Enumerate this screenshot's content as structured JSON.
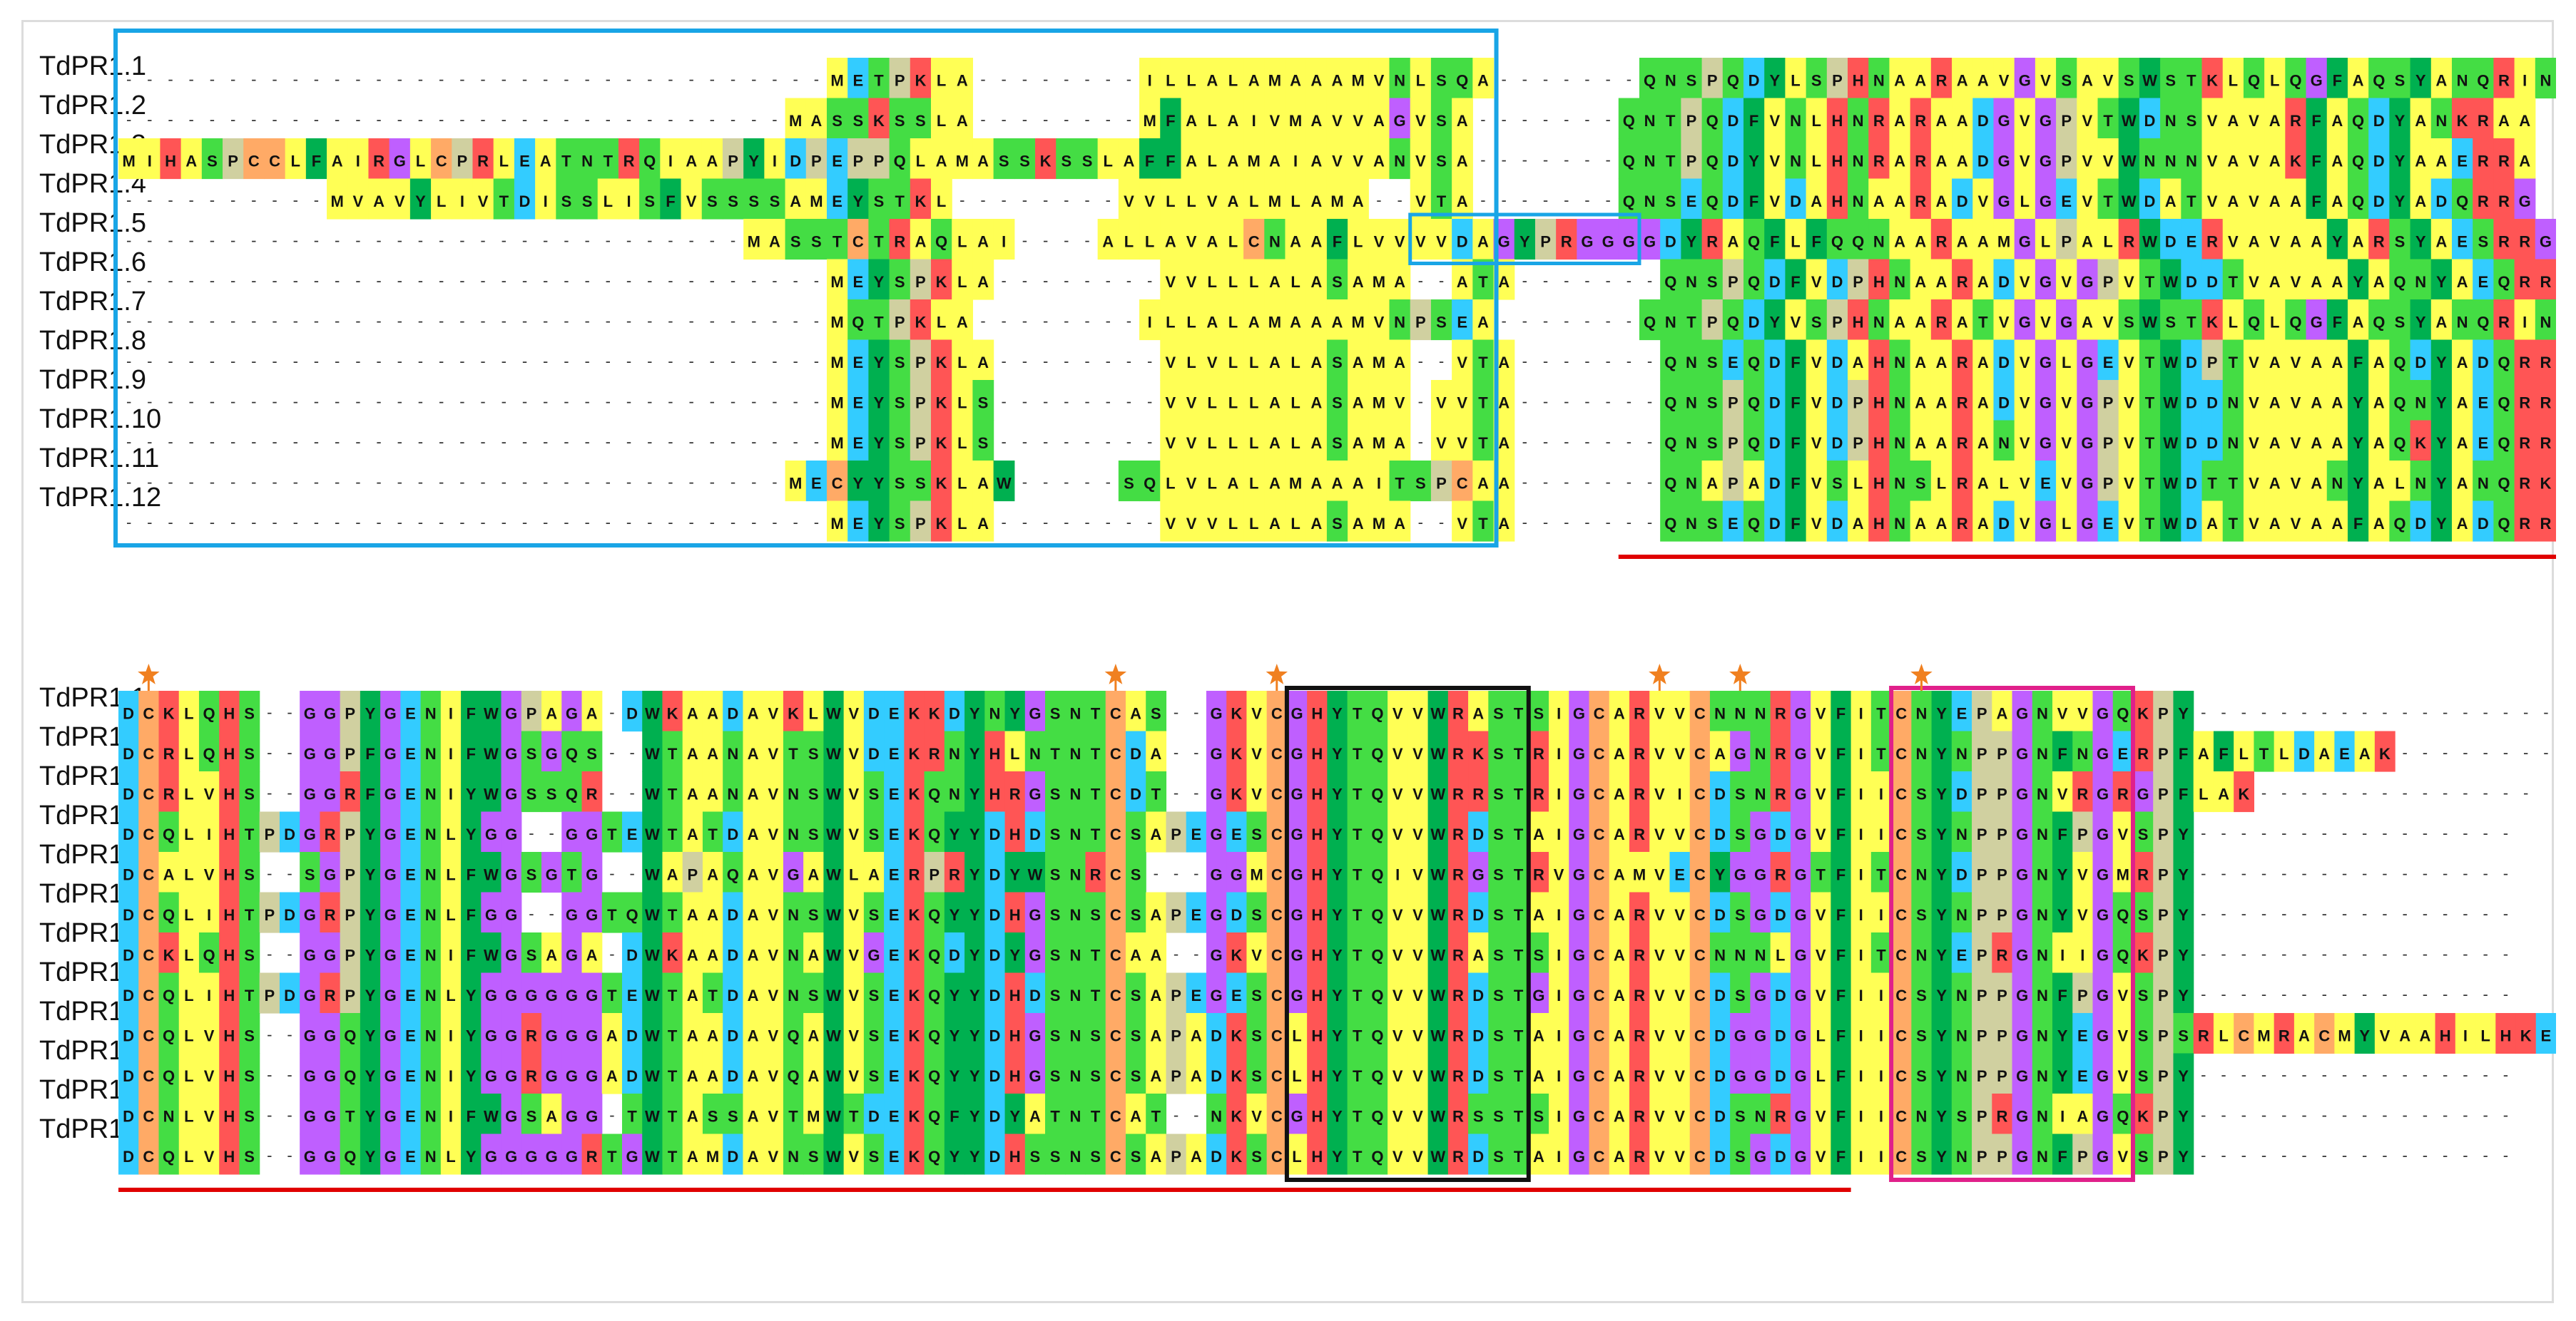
{
  "colors": {
    "A": "#ffff55",
    "I": "#ffff55",
    "L": "#ffff55",
    "M": "#ffff55",
    "V": "#ffff55",
    "F": "#00b050",
    "W": "#00b050",
    "Y": "#00b050",
    "G": "#bf5fff",
    "P": "#d0d0a0",
    "D": "#33ccff",
    "E": "#33ccff",
    "K": "#ff5555",
    "R": "#ff5555",
    "H": "#ff5555",
    "N": "#44dd44",
    "Q": "#44dd44",
    "S": "#44dd44",
    "T": "#44dd44",
    "C": "#ffaa66",
    "gap": "#ffffff",
    "text": "#111111",
    "blue_box": "#19a5e6",
    "black_box": "#111111",
    "magenta_box": "#e0208a",
    "underline": "#e00000",
    "star": "#f08020"
  },
  "block1": {
    "labels": [
      "TdPR1.1",
      "TdPR1.2",
      "TdPR1.3",
      "TdPR1.4",
      "TdPR1.5",
      "TdPR1.6",
      "TdPR1.7",
      "TdPR1.8",
      "TdPR1.9",
      "TdPR1.10",
      "TdPR1.11",
      "TdPR1.12"
    ],
    "rows": [
      "----------------------------------METPKLA--------ILLALAMAAAMVNLSQA-------QNSPQDYLSPHNAARAAVGVSAVSWSTKLQLQGFAQSYANQRIN",
      "--------------------------------MASSKSSLA--------MFALAIVMAVVAGVSA-------QNTPQDFVNLHNRARAADGVGPVTWDNSVAVARFAQDYANKRAA",
      "MIHASPCCLFAIRGLCPRLEATNTRQIAAPYIDPEPPQLAMASSKSSLAFFALAMAIAVVANVSA-------QNTPQDYVNLHNRARAADGVGPVVWNNNVAVAKFAQDYAAERRA",
      "----------MVAVYLIVTDISSLISFVSSSSAMEYSTKL--------VVLLVALMLAMA--VTA-------QNSEQDFVDAHNAARADVGLGEVTWDATVAVAAFAQDYADQRRG",
      "------------------------------MASSTCTRAQLAI----ALLAVALCNAAFLVVVVDAGYPRGGGGDYRAQFLFQQNAARAAMGLPALRWDERVAVAAYARSYAESRRG",
      "----------------------------------MEYSPKLA--------VVLLLALASAMA--ATA-------QNSPQDFVDPHNAARADVGVGPVTWDDTVAVAAYAQNYAEQRRG",
      "----------------------------------MQTPKLA--------ILLALAMAAAMVNPSEA-------QNTPQDYVSPHNAARATVGVGAVSWSTKLQLQGFAQSYANQRIN",
      "----------------------------------MEYSPKLA--------VLVLLALASAMA--VTA-------QNSEQDFVDAHNAARADVGLGEVTWDPTVAVAAFAQDYADQRRG",
      "----------------------------------MEYSPKLS--------VVLLLALASAMV-VVTA-------QNSPQDFVDPHNAARADVGVGPVTWDDNVAVAAYAQNYAEQRRG",
      "----------------------------------MEYSPKLS--------VVLLLALASAMA-VVTA-------QNSPQDFVDPHNAARANVGVGPVTWDDNVAVAAYAQKYAEQRRG",
      "--------------------------------MECYYSSKLAW-----SQLVLALAMAAAITSPCAA-------QNAPADFVSLHNSLRALVEVGPVTWDTTVAVANYALNYANQRKA",
      "----------------------------------MEYSPKLA--------VVVLLALASAMA--VTA-------QNSEQDFVDAHNAARADVGLGEVTWDATVAVAAFAQDYADQRRG"
    ]
  },
  "block2": {
    "labels": [
      "TdPR1.1",
      "TdPR1.2",
      "TdPR1.3",
      "TdPR1.4",
      "TdPR1.5",
      "TdPR1.6",
      "TdPR1.7",
      "TdPR1.8",
      "TdPR1.9",
      "TdPR1.10",
      "TdPR1.11",
      "TdPR1.12"
    ],
    "rows": [
      "DCKLQHS--GGPYGENIFWGPAGA-DWKAADAVKLWVDEKKDYNYGSNTCAS--GKVCGHYTQVVWRASTSIGCARVVCNNNRGVFITCNYEPAGNVVGQKPY------------------",
      "DCRLQHS--GGPFGENIFWGSGQS--WTAANAVTSWVDEKRNYHLNTNTCDA--GKVCGHYTQVVWRKSTRIGCARVVCAGNRGVFITCNYNPPGNFNGERPFAFLTLDAEAK--------",
      "DCRLVHS--GGRFGENIYWGSSQR--WTAANAVNSWVSEKQNYHRGSNTCDT--GKVCGHYTQVVWRRSTRIGCARVICDSNRGVFIICSYDPPGNVRGRGPFLAK--------------",
      "DCQLIHTPDGRPYGENLYGG--GGTEWTATDAVNSWVSEKQYYDHDSNTCSAPEGESCGHYTQVVWRDSTAIGCARVVCDSGDGVFIICSYNPPGNFPGVSPY----------------",
      "DCALVHS--SGPYGENLFWGSGTG--WAPAQAVGAWLAERPRYDYWSNRCS---GGMCGHYTQIVWRGSTRVGCAMVECYGGRGTFITCNYDPPGNYVGMRPY----------------",
      "DCQLIHTPDGRPYGENLFGG--GGTQWTAADAVNSWVSEKQYYDHGSNSCSAPEGDSCGHYTQVVWRDSTAIGCARVVCDSGDGVFIICSYNPPGNYVGQSPY----------------",
      "DCKLQHS--GGPYGENIFWGSAGA-DWKAADAVNAWVGEKQDYDYGSNTCAA--GKVCGHYTQVVWRASTSIGCARVVCNNNLGVFITCNYEPRGNIIGQKPY----------------",
      "DCQLIHTPDGRPYGENLYGGGGGGTEWTATDAVNSWVSEKQYYDHDSNTCSAPEGESCGHYTQVVWRDSTGIGCARVVCDSGDGVFIICSYNPPGNFPGVSPY----------------",
      "DCQLVHS--GGQYGENIYGGRGGGADWTAADAVQAWVSEKQYYDHGSNSCSAPADKSCLHYTQVVWRDSTAIGCARVVCDGGDGLFIICSYNPPGNYEGVSPSRLCMRACMYVAAHILHKE",
      "DCQLVHS--GGQYGENIYGGRGGGADWTAADAVQAWVSEKQYYDHGSNSCSAPADKSCLHYTQVVWRDSTAIGCARVVCDGGDGLFIICSYNPPGNYEGVSPY----------------",
      "DCNLVHS--GGTYGENIFWGSAGG-TWTASSAVTMWTDEKQFYDYATNTCAT--NKVCGHYTQVVWRSSTSIGCARVVCDSNRGVFIICNYSPRGNIAGQKPY----------------",
      "DCQLVHS--GGQYGENLYGGGGGRTGWTAMDAVNSWVSEKQYYDHSSNSCSAPADKSCLHYTQVVWRDSTAIGCARVVCDSGDGVFIICSYNPPGNFPGVSPY----------------"
    ]
  }
}
